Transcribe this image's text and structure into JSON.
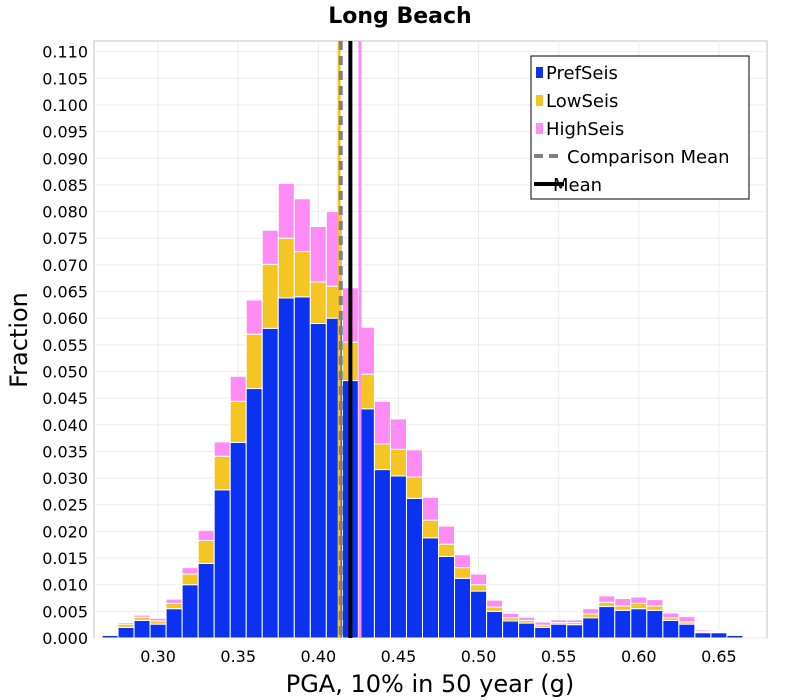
{
  "chart_data": {
    "type": "bar",
    "title": "Long Beach",
    "xlabel": "PGA, 10% in 50 year (g)",
    "ylabel": "Fraction",
    "xlim": [
      0.26,
      0.68
    ],
    "ylim": [
      0.0,
      0.112
    ],
    "bin_width": 0.01,
    "x_ticks": [
      "0.30",
      "0.35",
      "0.40",
      "0.45",
      "0.50",
      "0.55",
      "0.60",
      "0.65"
    ],
    "y_ticks": [
      "0.000",
      "0.005",
      "0.010",
      "0.015",
      "0.020",
      "0.025",
      "0.030",
      "0.035",
      "0.040",
      "0.045",
      "0.050",
      "0.055",
      "0.060",
      "0.065",
      "0.070",
      "0.075",
      "0.080",
      "0.085",
      "0.090",
      "0.095",
      "0.100",
      "0.105",
      "0.110"
    ],
    "grid": true,
    "legend_position": "top-right",
    "colors": {
      "PrefSeis": "#0a32f0",
      "LowSeis": "#f5c523",
      "HighSeis": "#ff8cf5",
      "Comparison Mean": "#808080",
      "Mean": "#000000"
    },
    "series": [
      {
        "name": "PrefSeis",
        "x": [
          0.27,
          0.28,
          0.29,
          0.3,
          0.31,
          0.32,
          0.33,
          0.34,
          0.35,
          0.36,
          0.37,
          0.38,
          0.39,
          0.4,
          0.41,
          0.42,
          0.43,
          0.44,
          0.45,
          0.46,
          0.47,
          0.48,
          0.49,
          0.5,
          0.51,
          0.52,
          0.53,
          0.54,
          0.55,
          0.56,
          0.57,
          0.58,
          0.59,
          0.6,
          0.61,
          0.62,
          0.63,
          0.64,
          0.65,
          0.66
        ],
        "values": [
          0.0005,
          0.002,
          0.0033,
          0.0026,
          0.0055,
          0.01,
          0.014,
          0.0278,
          0.0367,
          0.0468,
          0.0581,
          0.0638,
          0.064,
          0.059,
          0.06,
          0.0483,
          0.043,
          0.0316,
          0.0304,
          0.0262,
          0.0188,
          0.0153,
          0.0112,
          0.0088,
          0.005,
          0.0032,
          0.0028,
          0.002,
          0.0026,
          0.0025,
          0.0038,
          0.0059,
          0.0052,
          0.0055,
          0.0052,
          0.0033,
          0.0026,
          0.001,
          0.001,
          0.0005
        ]
      },
      {
        "name": "LowSeis",
        "x": [
          0.27,
          0.28,
          0.29,
          0.3,
          0.31,
          0.32,
          0.33,
          0.34,
          0.35,
          0.36,
          0.37,
          0.38,
          0.39,
          0.4,
          0.41,
          0.42,
          0.43,
          0.44,
          0.45,
          0.46,
          0.47,
          0.48,
          0.49,
          0.5,
          0.51,
          0.52,
          0.53,
          0.54,
          0.55,
          0.56,
          0.57,
          0.58,
          0.59,
          0.6,
          0.61,
          0.62,
          0.63,
          0.64,
          0.65,
          0.66
        ],
        "values": [
          0.0002,
          0.0006,
          0.0006,
          0.0006,
          0.001,
          0.002,
          0.0043,
          0.0063,
          0.0077,
          0.0102,
          0.012,
          0.0112,
          0.0085,
          0.0078,
          0.006,
          0.0072,
          0.0065,
          0.0048,
          0.005,
          0.004,
          0.0033,
          0.0023,
          0.002,
          0.0012,
          0.0008,
          0.0006,
          0.0005,
          0.0004,
          0.0003,
          0.0004,
          0.0007,
          0.0008,
          0.0008,
          0.001,
          0.0008,
          0.0005,
          0.0004,
          0.0002,
          0.0002,
          0.0001
        ]
      },
      {
        "name": "HighSeis",
        "x": [
          0.27,
          0.28,
          0.29,
          0.3,
          0.31,
          0.32,
          0.33,
          0.34,
          0.35,
          0.36,
          0.37,
          0.38,
          0.39,
          0.4,
          0.41,
          0.42,
          0.43,
          0.44,
          0.45,
          0.46,
          0.47,
          0.48,
          0.49,
          0.5,
          0.51,
          0.52,
          0.53,
          0.54,
          0.55,
          0.56,
          0.57,
          0.58,
          0.59,
          0.6,
          0.61,
          0.62,
          0.63,
          0.64,
          0.65,
          0.66
        ],
        "values": [
          0.0001,
          0.0003,
          0.0004,
          0.0005,
          0.0008,
          0.0012,
          0.0019,
          0.0027,
          0.0047,
          0.0064,
          0.0064,
          0.0103,
          0.0099,
          0.0104,
          0.014,
          0.0102,
          0.0088,
          0.008,
          0.0057,
          0.0051,
          0.0043,
          0.0034,
          0.0024,
          0.002,
          0.0013,
          0.0008,
          0.0006,
          0.0006,
          0.0005,
          0.0005,
          0.001,
          0.0012,
          0.0014,
          0.0012,
          0.0012,
          0.0009,
          0.001,
          0.0003,
          0.0002,
          0.0001
        ]
      }
    ],
    "vlines": [
      {
        "name": "Comparison Mean",
        "x": 0.414,
        "style": "dashed"
      },
      {
        "name": "Mean",
        "x": 0.42,
        "style": "solid"
      }
    ],
    "extra_lines": [
      {
        "x": 0.413,
        "color": "#f5c523"
      },
      {
        "x": 0.426,
        "color": "#ff8cf5"
      }
    ]
  }
}
